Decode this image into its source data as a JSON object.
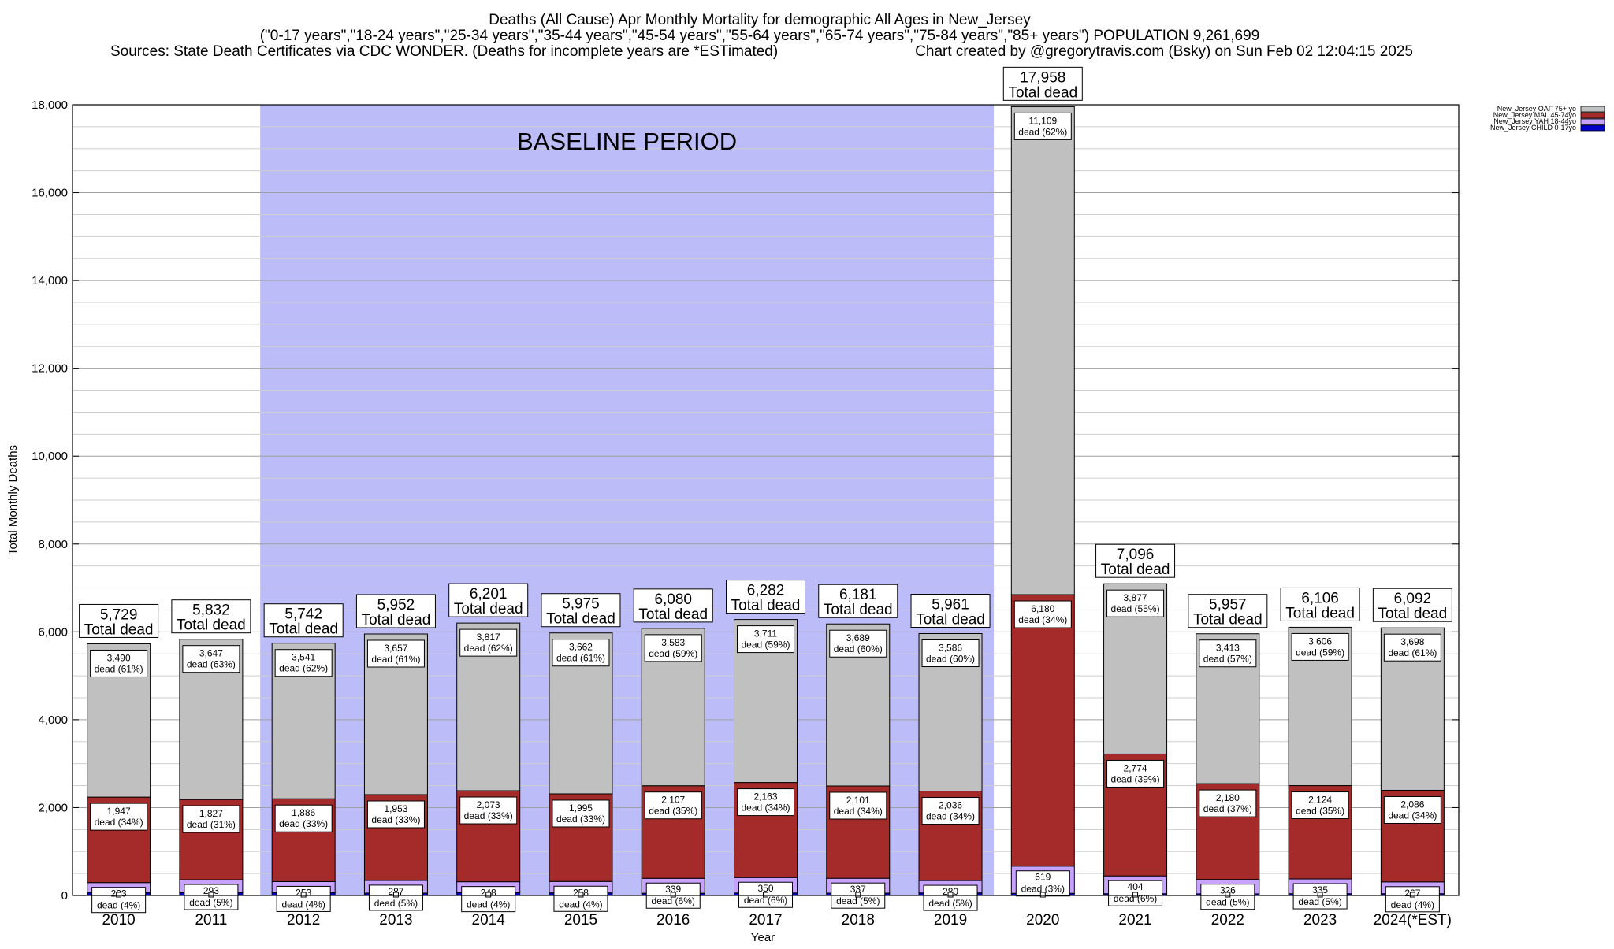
{
  "title": {
    "line1": "Deaths (All Cause) Apr Monthly Mortality for demographic All Ages in New_Jersey",
    "line2": "(\"0-17 years\",\"18-24 years\",\"25-34 years\",\"35-44 years\",\"45-54 years\",\"55-64 years\",\"65-74 years\",\"75-84 years\",\"85+ years\") POPULATION 9,261,699",
    "line3_left": "Sources: State Death Certificates via CDC WONDER. (Deaths for incomplete years are *ESTimated)",
    "line3_right": "Chart created by @gregorytravis.com (Bsky) on Sun Feb 02 12:04:15 2025"
  },
  "colors": {
    "oaf": "#c0c0c0",
    "mal": "#a52a2a",
    "yah": "#c8a2ff",
    "child": "#0000cd",
    "baseline": "#bcbcf8"
  },
  "chart_data": {
    "type": "bar",
    "stacked": true,
    "xlabel": "Year",
    "ylabel": "Total Monthly Deaths",
    "ylim": [
      0,
      18000
    ],
    "yticks": [
      0,
      2000,
      4000,
      6000,
      8000,
      10000,
      12000,
      14000,
      16000,
      18000
    ],
    "ytick_labels": [
      "0",
      "2,000",
      "4,000",
      "6,000",
      "8,000",
      "10,000",
      "12,000",
      "14,000",
      "16,000",
      "18,000"
    ],
    "grid": true,
    "legend_position": "top-right",
    "baseline_label": "BASELINE PERIOD",
    "baseline_range": [
      "2012",
      "2019"
    ],
    "categories": [
      "2010",
      "2011",
      "2012",
      "2013",
      "2014",
      "2015",
      "2016",
      "2017",
      "2018",
      "2019",
      "2020",
      "2021",
      "2022",
      "2023",
      "2024(*EST)"
    ],
    "series": [
      {
        "key": "child",
        "name": "New_Jersey CHILD 0-17yo",
        "values": [
          69,
          65,
          62,
          55,
          63,
          60,
          51,
          58,
          54,
          59,
          49,
          41,
          38,
          41,
          41
        ]
      },
      {
        "key": "yah",
        "name": "New_Jersey YAH 18-44yo",
        "values": [
          223,
          293,
          253,
          287,
          248,
          258,
          339,
          350,
          337,
          280,
          619,
          404,
          326,
          335,
          267
        ]
      },
      {
        "key": "mal",
        "name": "New_Jersey MAL 45-74yo",
        "values": [
          1947,
          1827,
          1886,
          1953,
          2073,
          1995,
          2107,
          2163,
          2101,
          2036,
          6180,
          2774,
          2180,
          2124,
          2086
        ]
      },
      {
        "key": "oaf",
        "name": "New_Jersey OAF 75+ yo",
        "values": [
          3490,
          3647,
          3541,
          3657,
          3817,
          3662,
          3583,
          3711,
          3689,
          3586,
          11109,
          3877,
          3413,
          3606,
          3698
        ]
      }
    ],
    "totals": [
      5729,
      5832,
      5742,
      5952,
      6201,
      5975,
      6080,
      6282,
      6181,
      5961,
      17958,
      7096,
      5957,
      6106,
      6092
    ],
    "segment_labels": {
      "oaf": [
        [
          "3,490",
          "dead (61%)"
        ],
        [
          "3,647",
          "dead (63%)"
        ],
        [
          "3,541",
          "dead (62%)"
        ],
        [
          "3,657",
          "dead (61%)"
        ],
        [
          "3,817",
          "dead (62%)"
        ],
        [
          "3,662",
          "dead (61%)"
        ],
        [
          "3,583",
          "dead (59%)"
        ],
        [
          "3,711",
          "dead (59%)"
        ],
        [
          "3,689",
          "dead (60%)"
        ],
        [
          "3,586",
          "dead (60%)"
        ],
        [
          "11,109",
          "dead (62%)"
        ],
        [
          "3,877",
          "dead (55%)"
        ],
        [
          "3,413",
          "dead (57%)"
        ],
        [
          "3,606",
          "dead (59%)"
        ],
        [
          "3,698",
          "dead (61%)"
        ]
      ],
      "mal": [
        [
          "1,947",
          "dead (34%)"
        ],
        [
          "1,827",
          "dead (31%)"
        ],
        [
          "1,886",
          "dead (33%)"
        ],
        [
          "1,953",
          "dead (33%)"
        ],
        [
          "2,073",
          "dead (33%)"
        ],
        [
          "1,995",
          "dead (33%)"
        ],
        [
          "2,107",
          "dead (35%)"
        ],
        [
          "2,163",
          "dead (34%)"
        ],
        [
          "2,101",
          "dead (34%)"
        ],
        [
          "2,036",
          "dead (34%)"
        ],
        [
          "6,180",
          "dead (34%)"
        ],
        [
          "2,774",
          "dead (39%)"
        ],
        [
          "2,180",
          "dead (37%)"
        ],
        [
          "2,124",
          "dead (35%)"
        ],
        [
          "2,086",
          "dead (34%)"
        ]
      ],
      "yah": [
        [
          "223",
          "dead (4%)"
        ],
        [
          "293",
          "dead (5%)"
        ],
        [
          "253",
          "dead (4%)"
        ],
        [
          "287",
          "dead (5%)"
        ],
        [
          "248",
          "dead (4%)"
        ],
        [
          "258",
          "dead (4%)"
        ],
        [
          "339",
          "dead (6%)"
        ],
        [
          "350",
          "dead (6%)"
        ],
        [
          "337",
          "dead (5%)"
        ],
        [
          "280",
          "dead (5%)"
        ],
        [
          "619",
          "dead (3%)"
        ],
        [
          "404",
          "dead (6%)"
        ],
        [
          "326",
          "dead (5%)"
        ],
        [
          "335",
          "dead (5%)"
        ],
        [
          "267",
          "dead (4%)"
        ]
      ]
    },
    "total_labels": [
      "5,729",
      "5,832",
      "5,742",
      "5,952",
      "6,201",
      "5,975",
      "6,080",
      "6,282",
      "6,181",
      "5,961",
      "17,958",
      "7,096",
      "5,957",
      "6,106",
      "6,092"
    ],
    "total_suffix": "Total dead"
  }
}
